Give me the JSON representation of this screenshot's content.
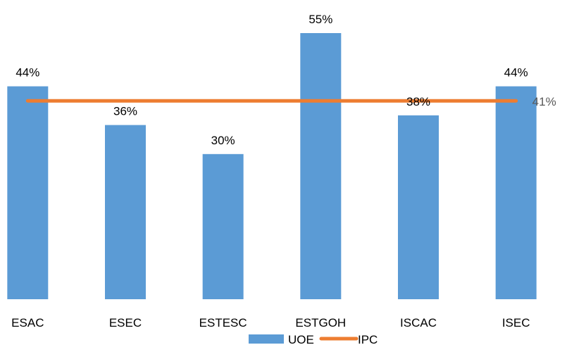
{
  "chart_data": {
    "type": "bar",
    "categories": [
      "ESAC",
      "ESEC",
      "ESTESC",
      "ESTGOH",
      "ISCAC",
      "ISEC"
    ],
    "series": [
      {
        "name": "UOE",
        "type": "bar",
        "values": [
          44,
          36,
          30,
          55,
          38,
          44
        ],
        "labels": [
          "44%",
          "36%",
          "30%",
          "55%",
          "38%",
          "44%"
        ],
        "color": "#5B9BD5"
      },
      {
        "name": "IPC",
        "type": "line",
        "values": [
          41,
          41,
          41,
          41,
          41,
          41
        ],
        "end_label": "41%",
        "color": "#ED7D31"
      }
    ],
    "title": "",
    "xlabel": "",
    "ylabel": "",
    "ylim": [
      0,
      60
    ],
    "grid": false,
    "legend_position": "bottom"
  }
}
